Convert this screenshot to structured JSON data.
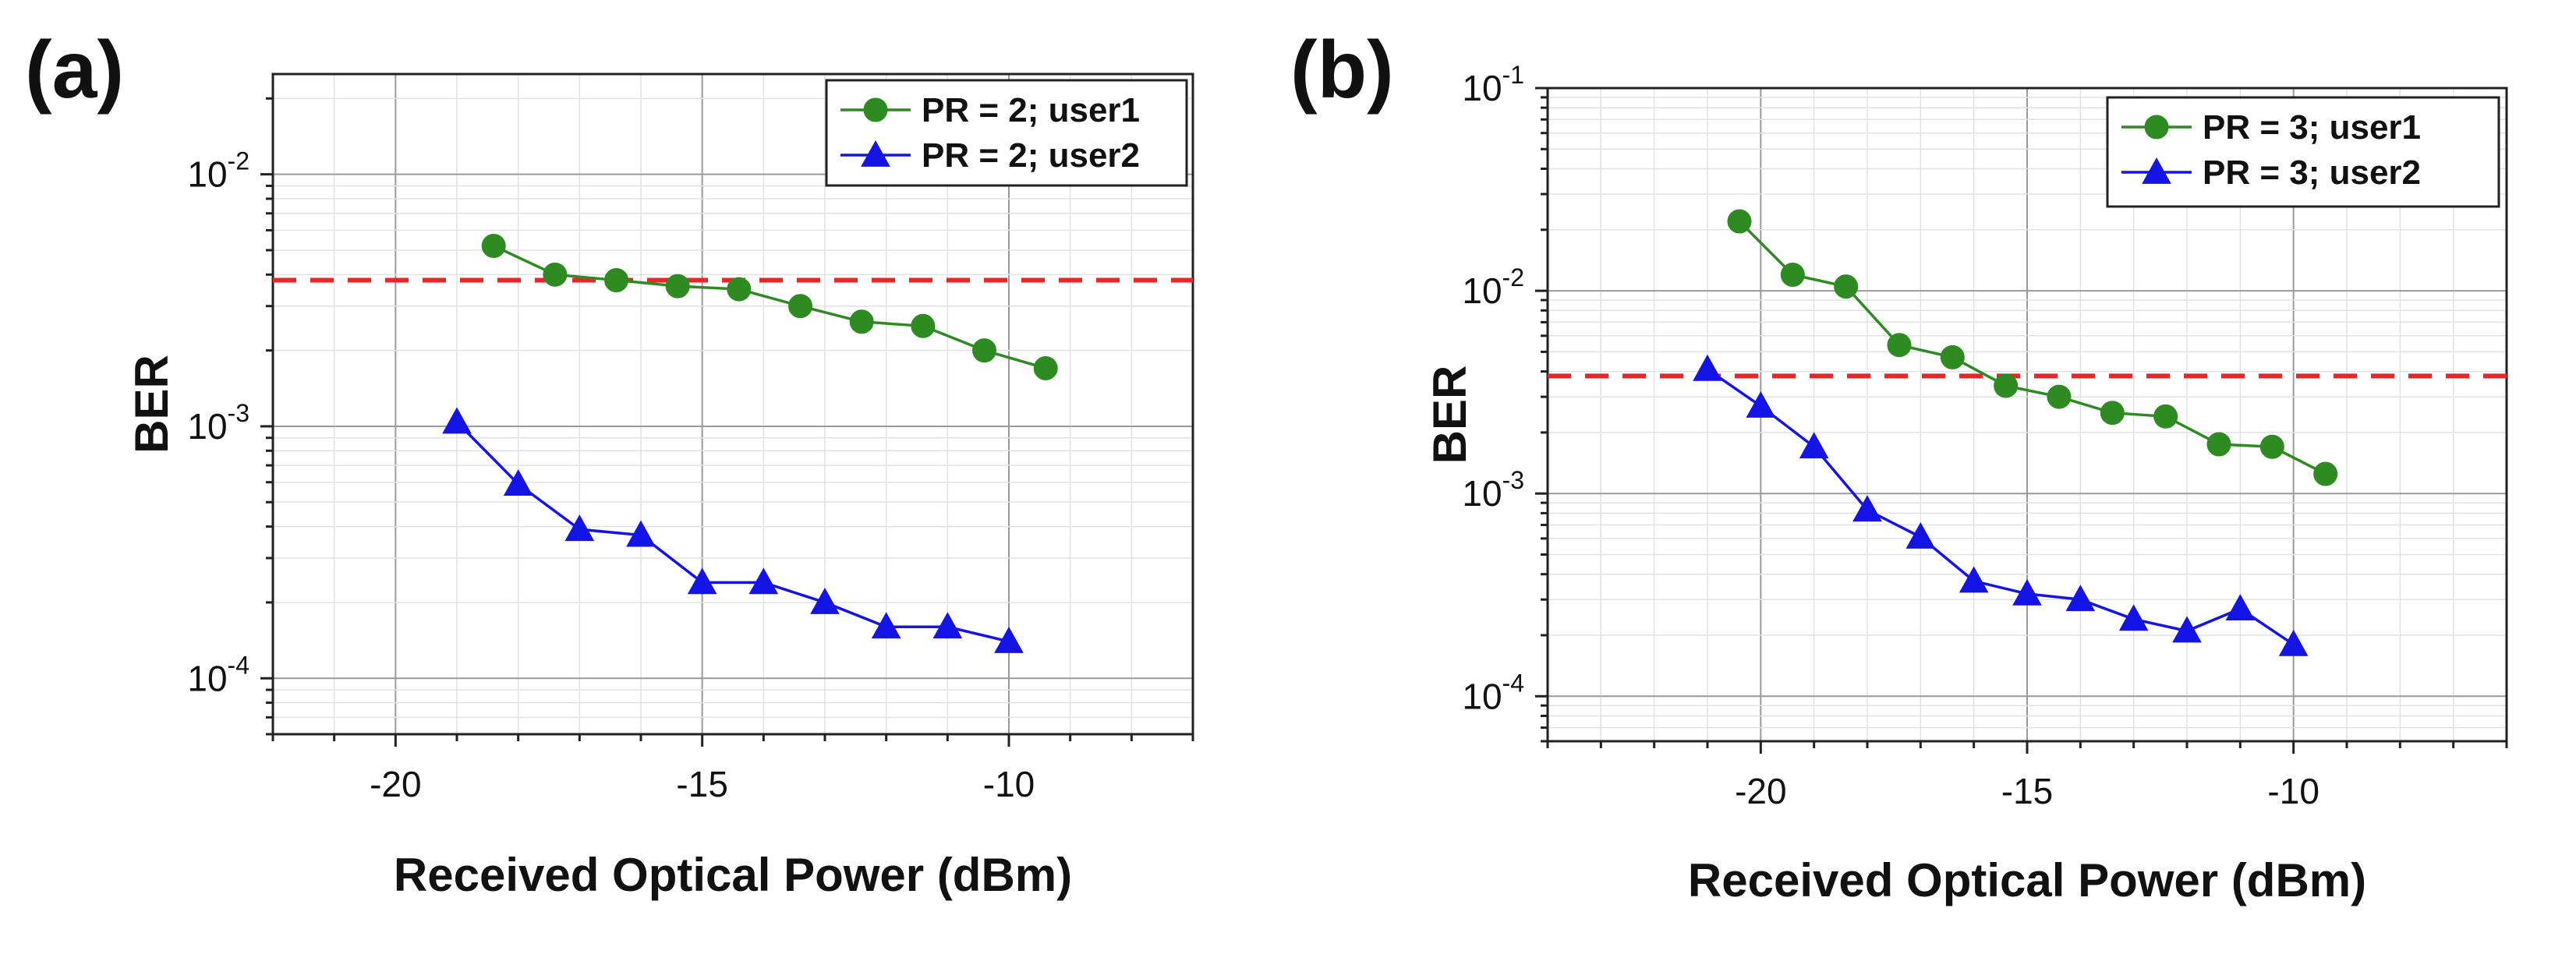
{
  "chart_data": [
    {
      "panel_label": "(a)",
      "type": "line",
      "xlabel": "Received Optical Power (dBm)",
      "ylabel": "BER",
      "xscale": "linear",
      "yscale": "log",
      "xlim": [
        -22,
        -7
      ],
      "ylim": [
        6e-05,
        0.025
      ],
      "xticks": [
        -20,
        -15,
        -10
      ],
      "xtick_labels": [
        "-20",
        "-15",
        "-10"
      ],
      "yticks": [
        0.0001,
        0.001,
        0.01
      ],
      "ytick_labels": [
        {
          "base": "10",
          "exp": "-4"
        },
        {
          "base": "10",
          "exp": "-3"
        },
        {
          "base": "10",
          "exp": "-2"
        }
      ],
      "grid": true,
      "legend_position": "top-right",
      "threshold": {
        "y": 0.0038,
        "color": "#e8262a",
        "style": "dashed"
      },
      "series": [
        {
          "name": "PR = 2; user1",
          "color": "#2e8b22",
          "marker": "circle",
          "x": [
            -18.4,
            -17.4,
            -16.4,
            -15.4,
            -14.4,
            -13.4,
            -12.4,
            -11.4,
            -10.4,
            -9.4
          ],
          "y": [
            0.0052,
            0.004,
            0.0038,
            0.0036,
            0.0035,
            0.003,
            0.0026,
            0.0025,
            0.002,
            0.0017
          ]
        },
        {
          "name": "PR = 2; user2",
          "color": "#1414e6",
          "marker": "triangle",
          "x": [
            -19,
            -18,
            -17,
            -16,
            -15,
            -14,
            -13,
            -12,
            -11,
            -10
          ],
          "y": [
            0.00104,
            0.00059,
            0.00039,
            0.00037,
            0.00024,
            0.00024,
            0.0002,
            0.00016,
            0.00016,
            0.00014
          ]
        }
      ]
    },
    {
      "panel_label": "(b)",
      "type": "line",
      "xlabel": "Received Optical Power (dBm)",
      "ylabel": "BER",
      "xscale": "linear",
      "yscale": "log",
      "xlim": [
        -24,
        -6
      ],
      "ylim": [
        6e-05,
        0.1
      ],
      "xticks": [
        -20,
        -15,
        -10
      ],
      "xtick_labels": [
        "-20",
        "-15",
        "-10"
      ],
      "yticks": [
        0.0001,
        0.001,
        0.01,
        0.1
      ],
      "ytick_labels": [
        {
          "base": "10",
          "exp": "-4"
        },
        {
          "base": "10",
          "exp": "-3"
        },
        {
          "base": "10",
          "exp": "-2"
        },
        {
          "base": "10",
          "exp": "-1"
        }
      ],
      "grid": true,
      "legend_position": "top-right",
      "threshold": {
        "y": 0.0038,
        "color": "#e8262a",
        "style": "dashed"
      },
      "series": [
        {
          "name": "PR = 3; user1",
          "color": "#2e8b22",
          "marker": "circle",
          "x": [
            -20.4,
            -19.4,
            -18.4,
            -17.4,
            -16.4,
            -15.4,
            -14.4,
            -13.4,
            -12.4,
            -11.4,
            -10.4,
            -9.4
          ],
          "y": [
            0.022,
            0.012,
            0.0105,
            0.0054,
            0.0047,
            0.0034,
            0.003,
            0.0025,
            0.0024,
            0.00175,
            0.0017,
            0.00125
          ]
        },
        {
          "name": "PR = 3; user2",
          "color": "#1414e6",
          "marker": "triangle",
          "x": [
            -21,
            -20,
            -19,
            -18,
            -17,
            -16,
            -15,
            -14,
            -13,
            -12,
            -11,
            -10
          ],
          "y": [
            0.0041,
            0.0027,
            0.0017,
            0.00083,
            0.00061,
            0.00037,
            0.00032,
            0.0003,
            0.00024,
            0.00021,
            0.00027,
            0.00018
          ]
        }
      ]
    }
  ]
}
